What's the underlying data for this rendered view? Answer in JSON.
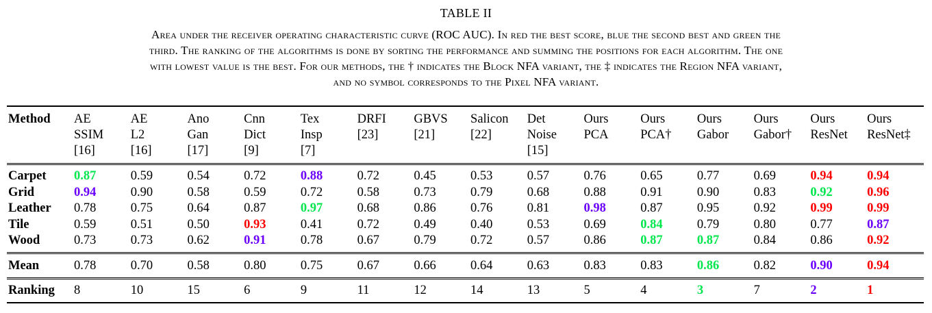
{
  "table_label": "TABLE II",
  "caption": [
    "Area under the receiver operating characteristic curve (ROC AUC). In red the best score, blue the second best and green the",
    "third. The ranking of the algorithms is done by sorting the performance and summing the positions for each algorithm. The one",
    "with lowest value is the best. For our methods, the † indicates the Block NFA variant, the ‡ indicates the Region NFA variant,",
    "and no symbol corresponds to the Pixel NFA variant."
  ],
  "columns": [
    {
      "lines": [
        "AE",
        "SSIM",
        "[16]"
      ]
    },
    {
      "lines": [
        "AE",
        "L2",
        "[16]"
      ]
    },
    {
      "lines": [
        "Ano",
        "Gan",
        "[17]"
      ]
    },
    {
      "lines": [
        "Cnn",
        "Dict",
        "[9]"
      ]
    },
    {
      "lines": [
        "Tex",
        "Insp",
        "[7]"
      ]
    },
    {
      "lines": [
        "DRFI",
        "[23]",
        ""
      ]
    },
    {
      "lines": [
        "GBVS",
        "[21]",
        ""
      ]
    },
    {
      "lines": [
        "Salicon",
        "[22]",
        ""
      ]
    },
    {
      "lines": [
        "Det",
        "Noise",
        "[15]"
      ]
    },
    {
      "lines": [
        "Ours",
        "PCA",
        ""
      ]
    },
    {
      "lines": [
        "Ours",
        "PCA†",
        ""
      ]
    },
    {
      "lines": [
        "Ours",
        "Gabor",
        ""
      ]
    },
    {
      "lines": [
        "Ours",
        "Gabor†",
        ""
      ]
    },
    {
      "lines": [
        "Ours",
        "ResNet",
        ""
      ]
    },
    {
      "lines": [
        "Ours",
        "ResNet‡",
        ""
      ]
    }
  ],
  "method_header": "Method",
  "colors": {
    "red": "#ff0000",
    "blue": "#6a00ff",
    "green": "#00e64d"
  },
  "rows": [
    {
      "name": "Carpet",
      "values": [
        "0.87",
        "0.59",
        "0.54",
        "0.72",
        "0.88",
        "0.72",
        "0.45",
        "0.53",
        "0.57",
        "0.76",
        "0.65",
        "0.77",
        "0.69",
        "0.94",
        "0.94"
      ],
      "highlight": [
        "green",
        "",
        "",
        "",
        "blue",
        "",
        "",
        "",
        "",
        "",
        "",
        "",
        "",
        "red",
        "red"
      ]
    },
    {
      "name": "Grid",
      "values": [
        "0.94",
        "0.90",
        "0.58",
        "0.59",
        "0.72",
        "0.58",
        "0.73",
        "0.79",
        "0.68",
        "0.88",
        "0.91",
        "0.90",
        "0.83",
        "0.92",
        "0.96"
      ],
      "highlight": [
        "blue",
        "",
        "",
        "",
        "",
        "",
        "",
        "",
        "",
        "",
        "",
        "",
        "",
        "green",
        "red"
      ]
    },
    {
      "name": "Leather",
      "values": [
        "0.78",
        "0.75",
        "0.64",
        "0.87",
        "0.97",
        "0.68",
        "0.86",
        "0.76",
        "0.81",
        "0.98",
        "0.87",
        "0.95",
        "0.92",
        "0.99",
        "0.99"
      ],
      "highlight": [
        "",
        "",
        "",
        "",
        "green",
        "",
        "",
        "",
        "",
        "blue",
        "",
        "",
        "",
        "red",
        "red"
      ]
    },
    {
      "name": "Tile",
      "values": [
        "0.59",
        "0.51",
        "0.50",
        "0.93",
        "0.41",
        "0.72",
        "0.49",
        "0.40",
        "0.53",
        "0.69",
        "0.84",
        "0.79",
        "0.80",
        "0.77",
        "0.87"
      ],
      "highlight": [
        "",
        "",
        "",
        "red",
        "",
        "",
        "",
        "",
        "",
        "",
        "green",
        "",
        "",
        "",
        "blue"
      ]
    },
    {
      "name": "Wood",
      "values": [
        "0.73",
        "0.73",
        "0.62",
        "0.91",
        "0.78",
        "0.67",
        "0.79",
        "0.72",
        "0.57",
        "0.86",
        "0.87",
        "0.87",
        "0.84",
        "0.86",
        "0.92"
      ],
      "highlight": [
        "",
        "",
        "",
        "blue",
        "",
        "",
        "",
        "",
        "",
        "",
        "green",
        "green",
        "",
        "",
        "red"
      ]
    }
  ],
  "mean": {
    "name": "Mean",
    "values": [
      "0.78",
      "0.70",
      "0.58",
      "0.80",
      "0.75",
      "0.67",
      "0.66",
      "0.64",
      "0.63",
      "0.83",
      "0.83",
      "0.86",
      "0.82",
      "0.90",
      "0.94"
    ],
    "highlight": [
      "",
      "",
      "",
      "",
      "",
      "",
      "",
      "",
      "",
      "",
      "",
      "green",
      "",
      "blue",
      "red"
    ]
  },
  "ranking": {
    "name": "Ranking",
    "values": [
      "8",
      "10",
      "15",
      "6",
      "9",
      "11",
      "12",
      "14",
      "13",
      "5",
      "4",
      "3",
      "7",
      "2",
      "1"
    ],
    "highlight": [
      "",
      "",
      "",
      "",
      "",
      "",
      "",
      "",
      "",
      "",
      "",
      "green",
      "",
      "blue",
      "red"
    ]
  }
}
